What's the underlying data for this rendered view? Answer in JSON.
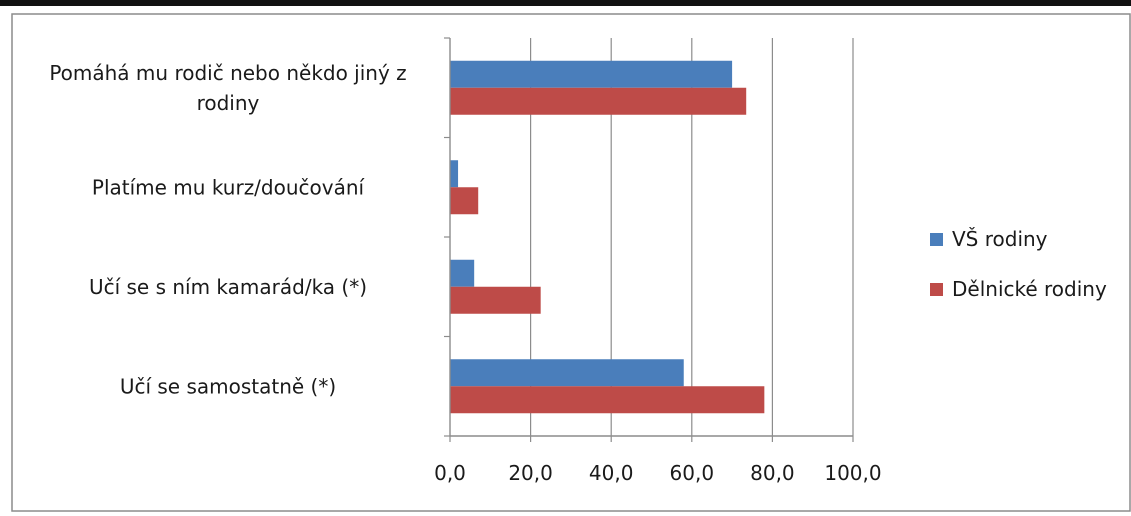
{
  "chart_data": {
    "type": "bar",
    "orientation": "horizontal",
    "categories": [
      "Pomáhá mu rodič nebo někdo jiný z rodiny",
      "Platíme mu kurz/doučování",
      "Učí se s ním kamarád/ka (*)",
      "Učí se samostatně (*)"
    ],
    "series": [
      {
        "name": "VŠ rodiny",
        "color": "#4a7ebb",
        "values": [
          70,
          2,
          6,
          58
        ]
      },
      {
        "name": "Dělnické rodiny",
        "color": "#be4b48",
        "values": [
          73.5,
          7,
          22.5,
          78
        ]
      }
    ],
    "xlim": [
      0,
      100
    ],
    "xticks": [
      "0,0",
      "20,0",
      "40,0",
      "60,0",
      "80,0",
      "100,0"
    ],
    "title": "",
    "xlabel": "",
    "ylabel": "",
    "grid": "vertical",
    "legend_position": "right"
  }
}
